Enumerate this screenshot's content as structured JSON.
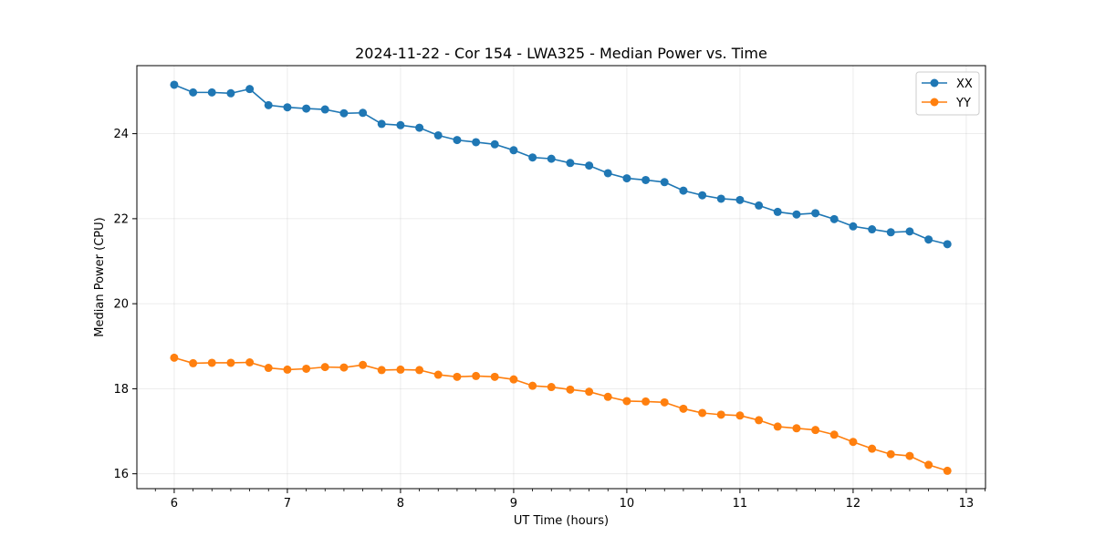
{
  "chart_data": {
    "type": "line",
    "title": "2024-11-22 - Cor 154 - LWA325 - Median Power vs. Time",
    "xlabel": "UT Time (hours)",
    "ylabel": "Median Power (CPU)",
    "xlim": [
      5.67,
      13.17
    ],
    "ylim": [
      15.65,
      25.6
    ],
    "xticks": [
      6,
      7,
      8,
      9,
      10,
      11,
      12,
      13
    ],
    "yticks": [
      16,
      18,
      20,
      22,
      24
    ],
    "grid": true,
    "legend_position": "top-right",
    "x": [
      6.0,
      6.167,
      6.333,
      6.5,
      6.667,
      6.833,
      7.0,
      7.167,
      7.333,
      7.5,
      7.667,
      7.833,
      8.0,
      8.167,
      8.333,
      8.5,
      8.667,
      8.833,
      9.0,
      9.167,
      9.333,
      9.5,
      9.667,
      9.833,
      10.0,
      10.167,
      10.333,
      10.5,
      10.667,
      10.833,
      11.0,
      11.167,
      11.333,
      11.5,
      11.667,
      11.833,
      12.0,
      12.167,
      12.333,
      12.5,
      12.667,
      12.833
    ],
    "series": [
      {
        "name": "XX",
        "color": "#1f77b4",
        "values": [
          25.15,
          24.97,
          24.97,
          24.95,
          25.05,
          24.67,
          24.62,
          24.59,
          24.57,
          24.48,
          24.49,
          24.23,
          24.2,
          24.14,
          23.96,
          23.85,
          23.8,
          23.75,
          23.61,
          23.44,
          23.41,
          23.31,
          23.25,
          23.07,
          22.95,
          22.91,
          22.86,
          22.66,
          22.55,
          22.47,
          22.44,
          22.31,
          22.16,
          22.1,
          22.13,
          21.99,
          21.82,
          21.75,
          21.68,
          21.7,
          21.51,
          21.4
        ]
      },
      {
        "name": "YY",
        "color": "#ff7f0e",
        "values": [
          18.73,
          18.6,
          18.61,
          18.61,
          18.62,
          18.49,
          18.45,
          18.47,
          18.51,
          18.5,
          18.56,
          18.44,
          18.45,
          18.44,
          18.33,
          18.28,
          18.3,
          18.28,
          18.22,
          18.07,
          18.04,
          17.98,
          17.93,
          17.81,
          17.71,
          17.7,
          17.68,
          17.53,
          17.43,
          17.39,
          17.37,
          17.26,
          17.11,
          17.07,
          17.03,
          16.92,
          16.75,
          16.59,
          16.46,
          16.42,
          16.21,
          16.07
        ]
      }
    ]
  }
}
